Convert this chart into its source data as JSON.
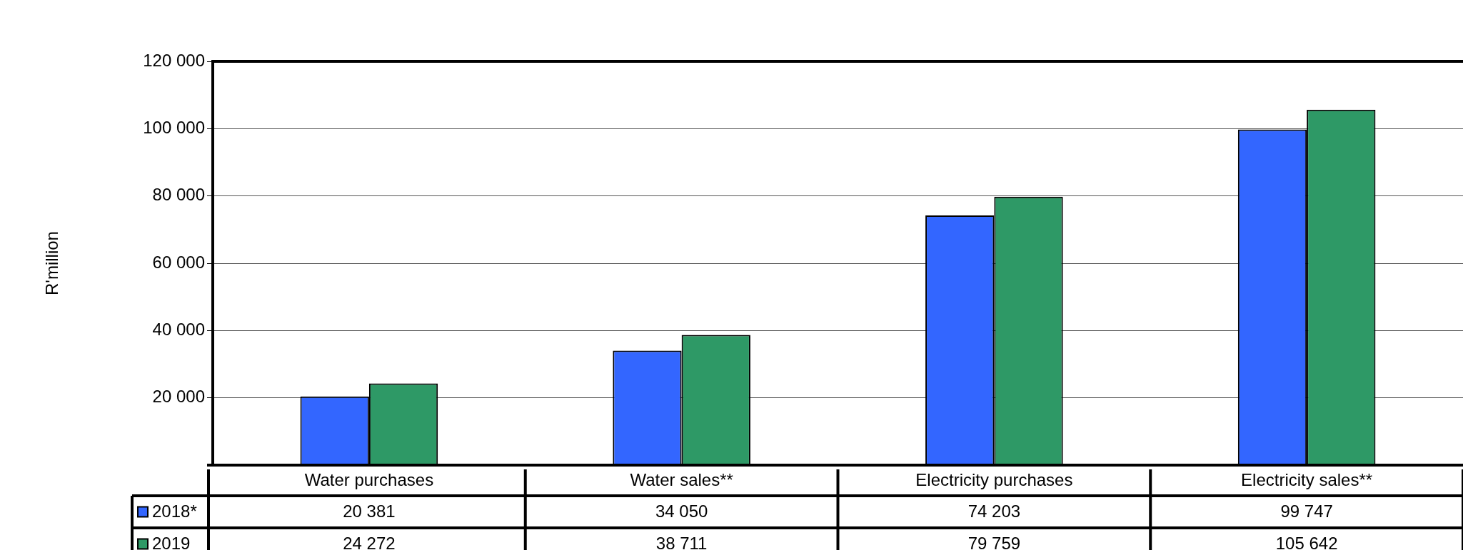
{
  "chart_data": {
    "type": "bar",
    "ylabel": "R'million",
    "categories": [
      "Water purchases",
      "Water sales**",
      "Electricity purchases",
      "Electricity sales**"
    ],
    "series": [
      {
        "name": "2018*",
        "color": "#3366ff",
        "values": [
          20381,
          34050,
          74203,
          99747
        ],
        "value_labels": [
          "20 381",
          "34 050",
          "74 203",
          "99 747"
        ]
      },
      {
        "name": "2019",
        "color": "#2e9966",
        "values": [
          24272,
          38711,
          79759,
          105642
        ],
        "value_labels": [
          "24 272",
          "38 711",
          "79 759",
          "105 642"
        ]
      }
    ],
    "ylim": [
      0,
      120000
    ],
    "yticks": [
      {
        "value": 20000,
        "label": "20 000"
      },
      {
        "value": 40000,
        "label": "40 000"
      },
      {
        "value": 60000,
        "label": "60 000"
      },
      {
        "value": 80000,
        "label": "80 000"
      },
      {
        "value": 100000,
        "label": "100 000"
      },
      {
        "value": 120000,
        "label": "120 000"
      }
    ],
    "grid": "y",
    "legend": "bottom left"
  }
}
